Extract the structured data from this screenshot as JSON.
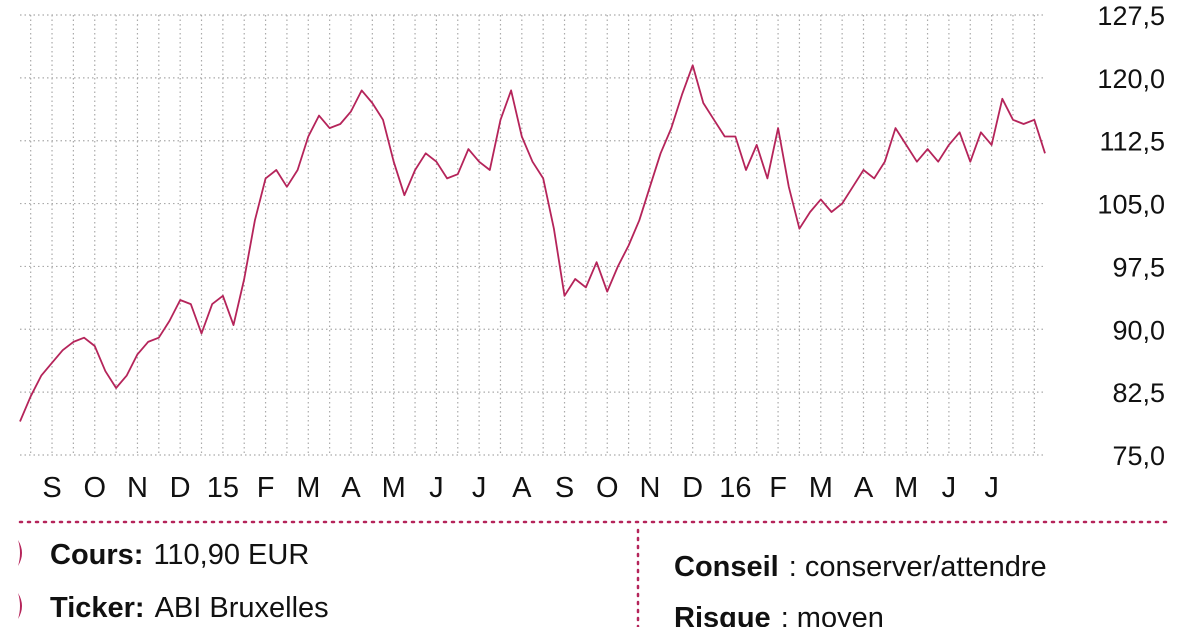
{
  "chart_data": {
    "type": "line",
    "categories": [
      null,
      null,
      null,
      "S",
      null,
      null,
      null,
      "O",
      null,
      null,
      null,
      "N",
      null,
      null,
      null,
      "D",
      null,
      null,
      null,
      "15",
      null,
      null,
      null,
      "F",
      null,
      null,
      null,
      "M",
      null,
      null,
      null,
      "A",
      null,
      null,
      null,
      "M",
      null,
      null,
      null,
      "J",
      null,
      null,
      null,
      "J",
      null,
      null,
      null,
      "A",
      null,
      null,
      null,
      "S",
      null,
      null,
      null,
      "O",
      null,
      null,
      null,
      "N",
      null,
      null,
      null,
      "D",
      null,
      null,
      null,
      "16",
      null,
      null,
      null,
      "F",
      null,
      null,
      null,
      "M",
      null,
      null,
      null,
      "A",
      null,
      null,
      null,
      "M",
      null,
      null,
      null,
      "J",
      null,
      null,
      null,
      "J",
      null,
      null,
      null,
      null,
      null
    ],
    "series": [
      {
        "color": "#b5245a",
        "values": [
          79,
          82,
          84.5,
          86,
          87.5,
          88.5,
          89,
          88,
          85,
          83,
          84.5,
          87,
          88.5,
          89,
          91,
          93.5,
          93,
          89.5,
          93,
          94,
          90.5,
          96,
          103,
          108,
          109,
          107,
          109,
          113,
          115.5,
          114,
          114.5,
          116,
          118.5,
          117,
          115,
          110,
          106,
          109,
          111,
          110,
          108,
          108.5,
          111.5,
          110,
          109,
          115,
          118.5,
          113,
          110,
          108,
          102,
          94,
          96,
          95,
          98,
          94.5,
          97.5,
          100,
          103,
          107,
          111,
          114,
          118,
          121.5,
          117,
          115,
          113,
          113,
          109,
          112,
          108,
          114,
          107,
          102,
          104,
          105.5,
          104,
          105,
          107,
          109,
          108,
          110,
          114,
          112,
          110,
          111.5,
          110,
          112,
          113.5,
          110,
          113.5,
          112,
          117.5,
          115,
          114.5,
          115,
          111
        ]
      }
    ],
    "ylim": [
      75,
      127.5
    ],
    "yticks": [
      {
        "value": 75,
        "label": "75,0"
      },
      {
        "value": 82.5,
        "label": "82,5"
      },
      {
        "value": 90,
        "label": "90,0"
      },
      {
        "value": 97.5,
        "label": "97,5"
      },
      {
        "value": 105,
        "label": "105,0"
      },
      {
        "value": 112.5,
        "label": "112,5"
      },
      {
        "value": 120,
        "label": "120,0"
      },
      {
        "value": 127.5,
        "label": "127,5"
      }
    ],
    "grid": true
  },
  "info": {
    "left": [
      {
        "label": "Cours:",
        "value": "110,90 EUR"
      },
      {
        "label": "Ticker:",
        "value": "ABI Bruxelles"
      }
    ],
    "right": [
      {
        "label": "Conseil",
        "value": ": conserver/attendre"
      },
      {
        "label": "Risque",
        "value": ": moyen"
      }
    ]
  }
}
